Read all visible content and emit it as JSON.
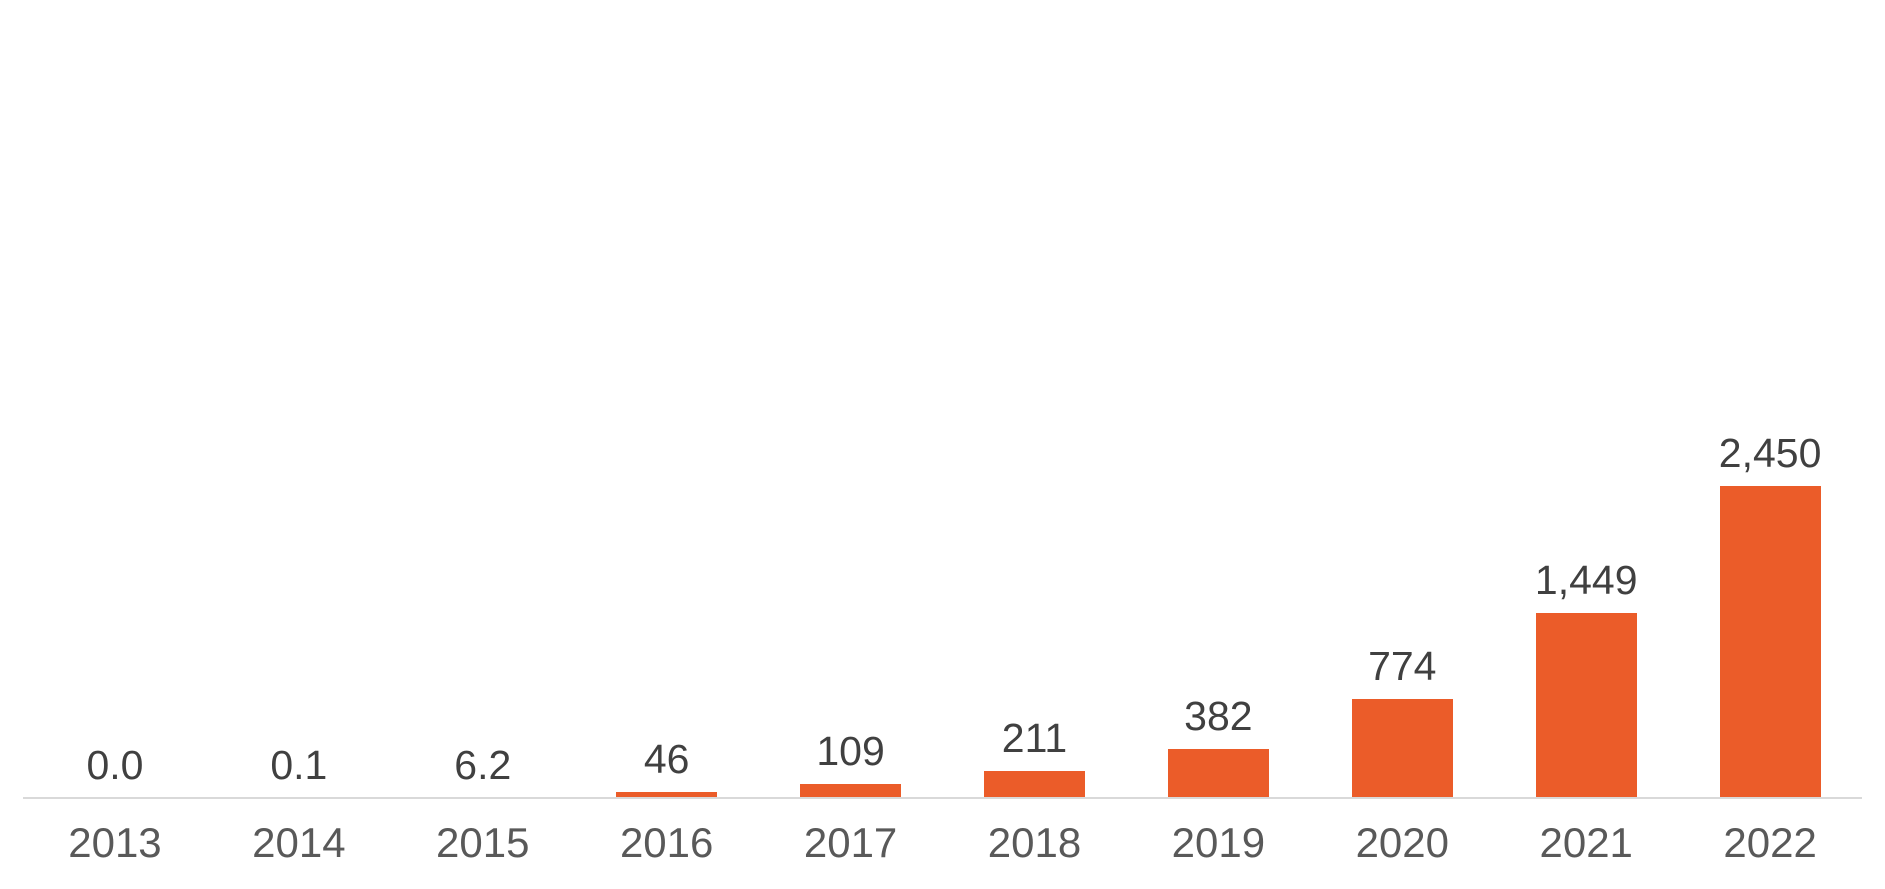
{
  "chart_data": {
    "type": "bar",
    "title": "",
    "xlabel": "",
    "ylabel": "",
    "categories": [
      "2013",
      "2014",
      "2015",
      "2016",
      "2017",
      "2018",
      "2019",
      "2020",
      "2021",
      "2022"
    ],
    "values": [
      0.0,
      0.1,
      6.2,
      46,
      109,
      211,
      382,
      774,
      1449,
      2450
    ],
    "value_labels": [
      "0.0",
      "0.1",
      "6.2",
      "46",
      "109",
      "211",
      "382",
      "774",
      "1,449",
      "2,450"
    ],
    "ylim": [
      0,
      2450
    ],
    "grid": false,
    "legend": "none",
    "data_labels_position": "above-bars",
    "bar_color": "#EB5C29",
    "axis_line_color": "#D9D9D9",
    "value_label_color": "#404040",
    "tick_label_color": "#595959",
    "background_color": "#FFFFFF"
  }
}
